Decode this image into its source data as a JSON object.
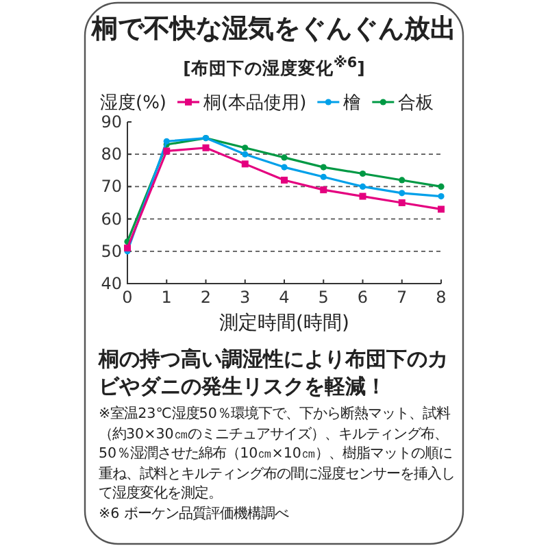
{
  "chart_data": {
    "type": "line",
    "title": "桐で不快な湿気をぐんぐん放出",
    "subtitle": "[布団下の湿度変化$^{※6}$]",
    "ylabel": "湿度(%)",
    "xlabel": "測定時間(時間)",
    "x": [
      0,
      1,
      2,
      3,
      4,
      5,
      6,
      7,
      8
    ],
    "xlim": [
      0,
      8
    ],
    "xticks": [
      0,
      1,
      2,
      3,
      4,
      5,
      6,
      7,
      8
    ],
    "ylim": [
      40,
      90
    ],
    "yticks": [
      40,
      50,
      60,
      70,
      80,
      90
    ],
    "grid": "y",
    "legend": "top",
    "line_style": "solid",
    "series": [
      {
        "name": "桐(本品使用)",
        "color": "#e4007f",
        "marker": "square",
        "values": [
          51,
          81,
          82,
          77,
          72,
          69,
          67,
          65,
          63
        ]
      },
      {
        "name": "檜",
        "color": "#00a0e9",
        "marker": "circle",
        "values": [
          50,
          84,
          85,
          80,
          76,
          73,
          70,
          68,
          67
        ]
      },
      {
        "name": "合板",
        "color": "#009944",
        "marker": "circle",
        "values": [
          53,
          83,
          85,
          82,
          79,
          76,
          74,
          72,
          70
        ]
      }
    ],
    "annotations": [
      "桐の持つ高い調湿性により布団下のカビやダニの発生リスクを軽減！",
      "※室温23℃湿度50％環境下で、下から断熱マット、試料（約30×30㎝のミニチュアサイズ）、キルティング布、50％湿潤させた綿布（10㎝×10㎝）、樹脂マットの順に重ね、試料とキルティング布の間に湿度センサーを挿入して湿度変化を測定。",
      "※6 ボーケン品質評価機構調べ"
    ]
  }
}
